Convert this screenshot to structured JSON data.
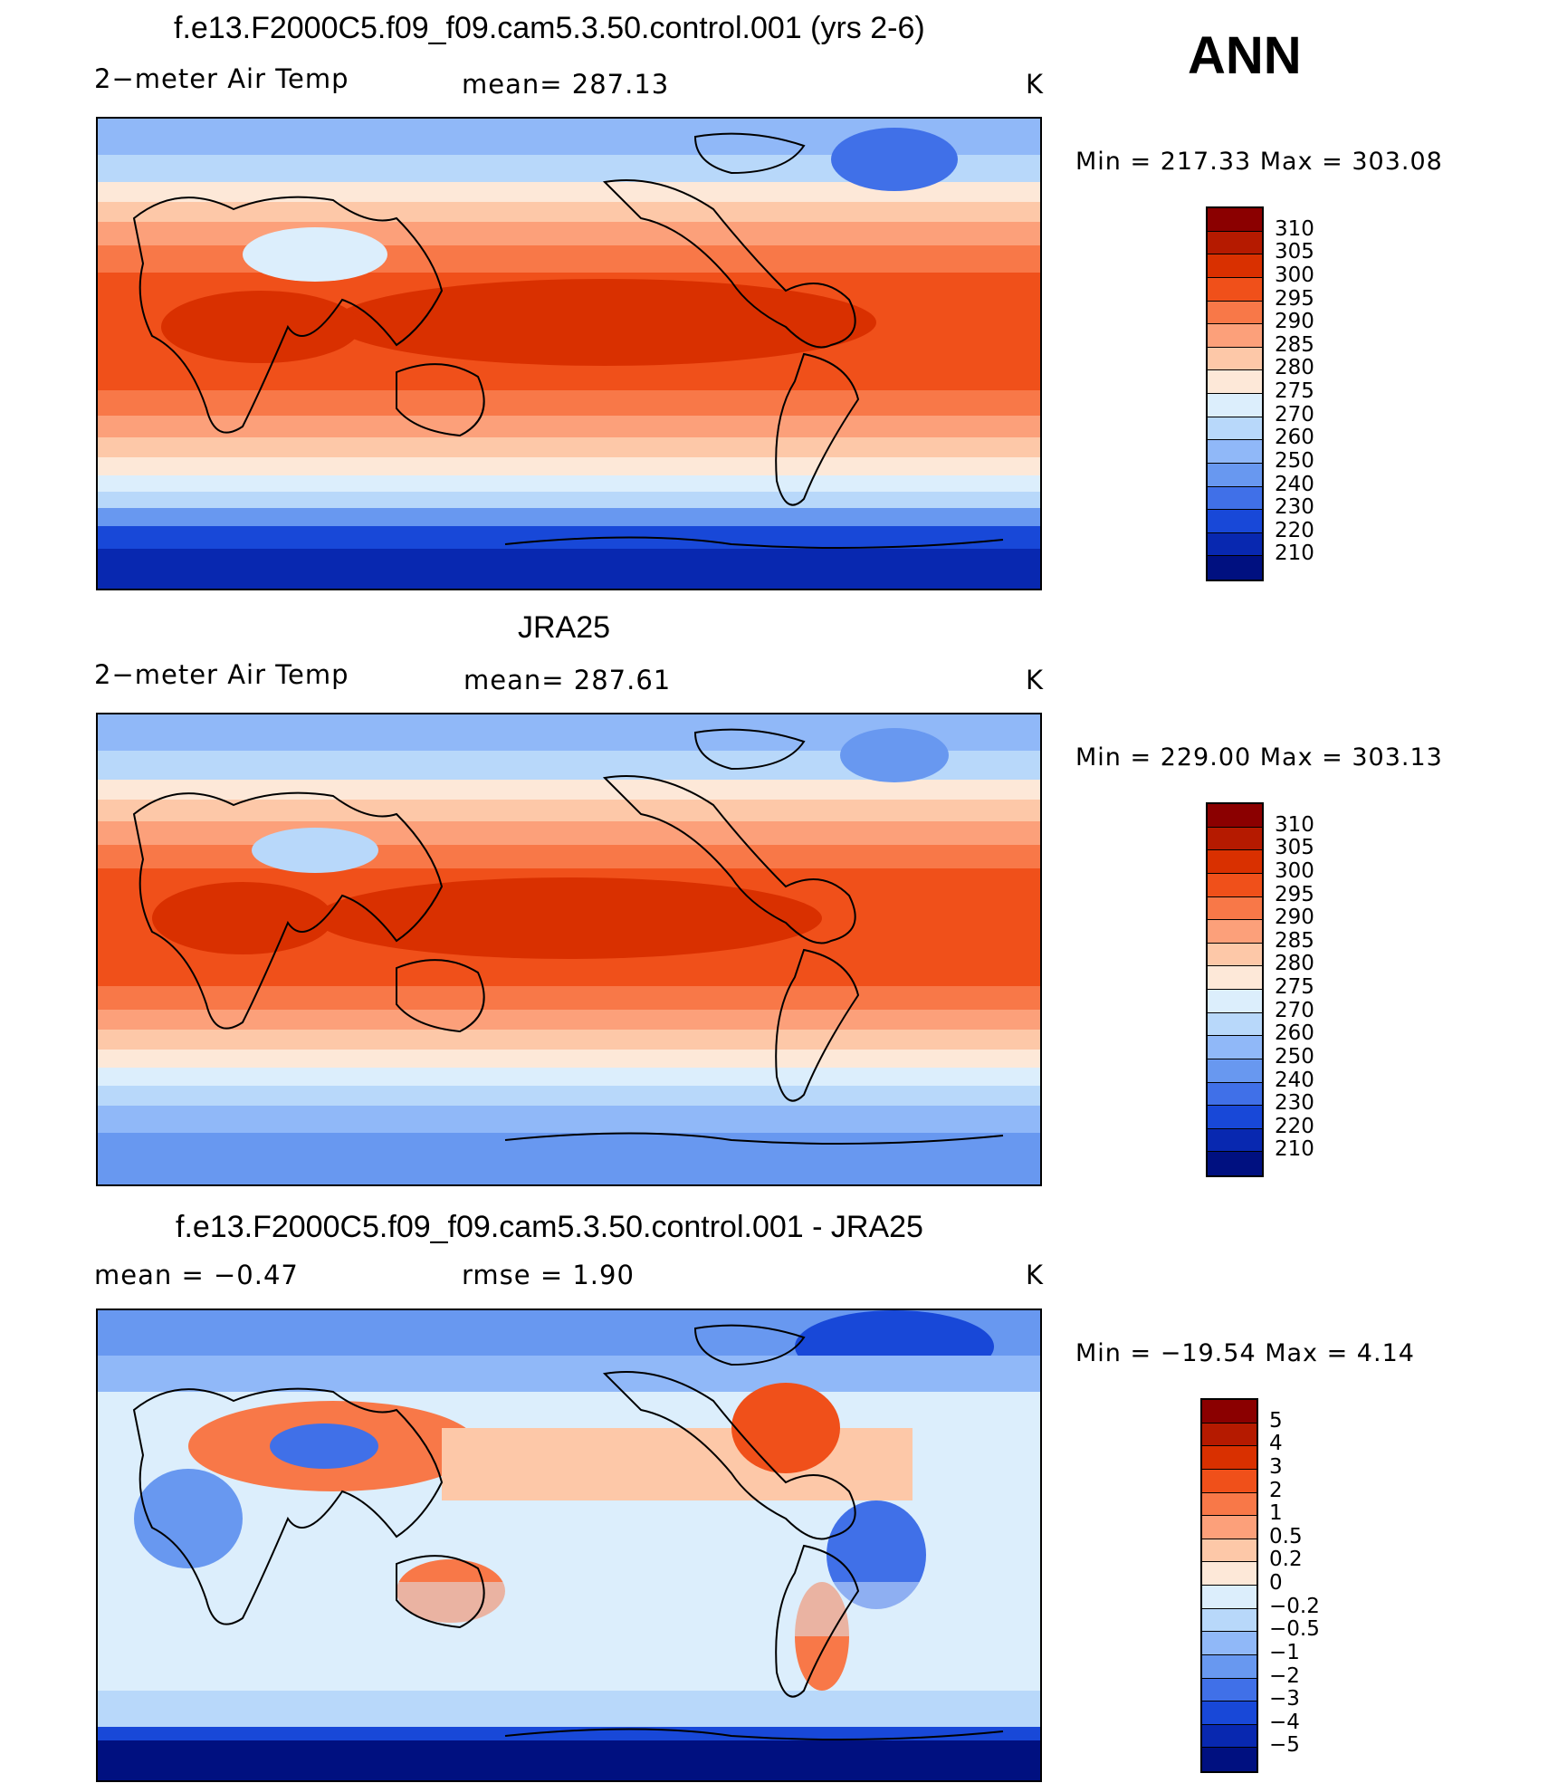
{
  "season": "ANN",
  "panels": [
    {
      "title": "f.e13.F2000C5.f09_f09.cam5.3.50.control.001 (yrs 2-6)",
      "left_label": "2−meter Air Temp",
      "center_label": "mean=  287.13",
      "unit": "K",
      "minmax": "Min  =  217.33  Max  =  303.08",
      "kind": "temp"
    },
    {
      "title": "JRA25",
      "left_label": "2−meter Air Temp",
      "center_label": "mean=  287.61",
      "unit": "K",
      "minmax": "Min  =  229.00  Max  =  303.13",
      "kind": "temp"
    },
    {
      "title": "f.e13.F2000C5.f09_f09.cam5.3.50.control.001 - JRA25",
      "left_label": "mean  =     −0.47",
      "center_label": "rmse  =      1.90",
      "unit": "K",
      "minmax": "Min  =  −19.54  Max  =      4.14",
      "kind": "diff"
    }
  ],
  "temp_scale": {
    "labels": [
      "310",
      "305",
      "300",
      "295",
      "290",
      "285",
      "280",
      "275",
      "270",
      "260",
      "250",
      "240",
      "230",
      "220",
      "210"
    ],
    "colors": [
      "#8b0000",
      "#b51a00",
      "#d93000",
      "#f0501a",
      "#f87848",
      "#fca07a",
      "#fdc8a8",
      "#fde8d8",
      "#dceefc",
      "#b8d8fa",
      "#90b8f8",
      "#6898f0",
      "#4070e8",
      "#1848d8",
      "#0828b0",
      "#001080"
    ]
  },
  "diff_scale": {
    "labels": [
      "5",
      "4",
      "3",
      "2",
      "1",
      "0.5",
      "0.2",
      "0",
      "−0.2",
      "−0.5",
      "−1",
      "−2",
      "−3",
      "−4",
      "−5"
    ],
    "colors": [
      "#8b0000",
      "#b51a00",
      "#d93000",
      "#f0501a",
      "#f87848",
      "#fca07a",
      "#fdc8a8",
      "#fde8d8",
      "#dceefc",
      "#b8d8fa",
      "#90b8f8",
      "#6898f0",
      "#4070e8",
      "#1848d8",
      "#0828b0",
      "#001080"
    ]
  }
}
